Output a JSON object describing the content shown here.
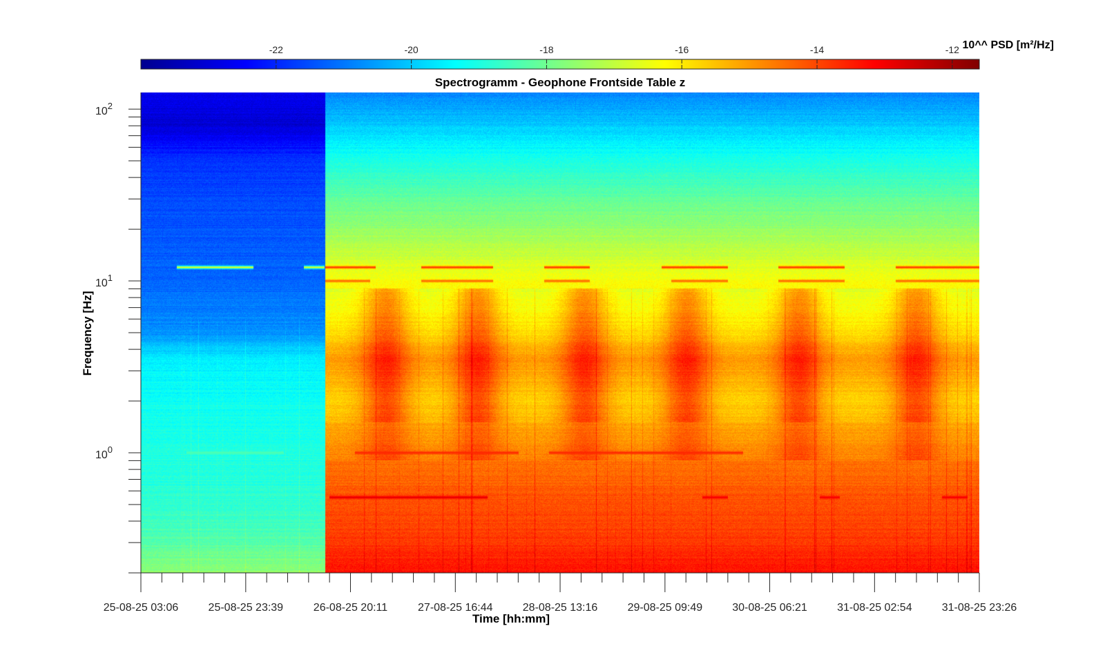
{
  "chart_data": {
    "type": "heatmap",
    "title": "Spectrogramm - Geophone Frontside Table z",
    "xlabel": "Time [hh:mm]",
    "ylabel": "Frequency [Hz]",
    "yscale": "log",
    "ylim": [
      0.2,
      125
    ],
    "y_ticks": [
      {
        "value": 1,
        "base": "10",
        "exp": "0"
      },
      {
        "value": 10,
        "base": "10",
        "exp": "1"
      },
      {
        "value": 100,
        "base": "10",
        "exp": "2"
      }
    ],
    "x_range_hours": [
      0,
      164.33
    ],
    "x_ticks": [
      {
        "hours": 0,
        "label": "25-08-25 03:06"
      },
      {
        "hours": 20.55,
        "label": "25-08-25 23:39"
      },
      {
        "hours": 41.08,
        "label": "26-08-25 20:11"
      },
      {
        "hours": 61.63,
        "label": "27-08-25 16:44"
      },
      {
        "hours": 82.17,
        "label": "28-08-25 13:16"
      },
      {
        "hours": 102.72,
        "label": "29-08-25 09:49"
      },
      {
        "hours": 123.25,
        "label": "30-08-25 06:21"
      },
      {
        "hours": 143.8,
        "label": "31-08-25 02:54"
      },
      {
        "hours": 164.33,
        "label": "31-08-25 23:26"
      }
    ],
    "colorbar": {
      "label": "10^^ PSD [m²/Hz]",
      "colormap": "jet",
      "range": [
        -24,
        -11.6
      ],
      "ticks": [
        {
          "value": -22,
          "label": "-22"
        },
        {
          "value": -20,
          "label": "-20"
        },
        {
          "value": -18,
          "label": "-18"
        },
        {
          "value": -16,
          "label": "-16"
        },
        {
          "value": -14,
          "label": "-14"
        },
        {
          "value": -12,
          "label": "-12"
        }
      ]
    },
    "regimes": [
      {
        "name": "quiet",
        "start_hours": 0,
        "end_hours": 36.2
      },
      {
        "name": "active",
        "start_hours": 36.2,
        "end_hours": 164.33
      }
    ],
    "log10_psd_profile_quiet": [
      {
        "f": 0.2,
        "v": -17.6
      },
      {
        "f": 0.3,
        "v": -18.3
      },
      {
        "f": 0.5,
        "v": -18.8
      },
      {
        "f": 1.0,
        "v": -19.0
      },
      {
        "f": 2.0,
        "v": -19.2
      },
      {
        "f": 3.5,
        "v": -19.5
      },
      {
        "f": 5.0,
        "v": -20.7
      },
      {
        "f": 10.0,
        "v": -21.2
      },
      {
        "f": 20.0,
        "v": -21.4
      },
      {
        "f": 50.0,
        "v": -21.8
      },
      {
        "f": 80.0,
        "v": -23.0
      },
      {
        "f": 125.0,
        "v": -22.6
      }
    ],
    "log10_psd_profile_active": [
      {
        "f": 0.2,
        "v": -13.3
      },
      {
        "f": 0.3,
        "v": -13.8
      },
      {
        "f": 0.5,
        "v": -14.1
      },
      {
        "f": 1.0,
        "v": -14.6
      },
      {
        "f": 2.0,
        "v": -15.2
      },
      {
        "f": 3.5,
        "v": -14.5
      },
      {
        "f": 5.0,
        "v": -15.4
      },
      {
        "f": 10.0,
        "v": -16.3
      },
      {
        "f": 20.0,
        "v": -17.5
      },
      {
        "f": 50.0,
        "v": -19.0
      },
      {
        "f": 80.0,
        "v": -20.0
      },
      {
        "f": 125.0,
        "v": -20.8
      }
    ],
    "daily_activity_centers_hours": [
      48,
      66,
      87,
      107,
      129,
      152
    ],
    "spectral_lines": [
      {
        "f": 12.0,
        "start_hours": 7,
        "end_hours": 22,
        "v": -16.6
      },
      {
        "f": 12.0,
        "start_hours": 32,
        "end_hours": 36,
        "v": -16.6
      },
      {
        "f": 12.0,
        "start_hours": 36.2,
        "end_hours": 46,
        "v": -13.8
      },
      {
        "f": 12.0,
        "start_hours": 55,
        "end_hours": 69,
        "v": -13.8
      },
      {
        "f": 12.0,
        "start_hours": 79,
        "end_hours": 88,
        "v": -13.8
      },
      {
        "f": 12.0,
        "start_hours": 102,
        "end_hours": 115,
        "v": -13.8
      },
      {
        "f": 12.0,
        "start_hours": 125,
        "end_hours": 138,
        "v": -13.8
      },
      {
        "f": 12.0,
        "start_hours": 148,
        "end_hours": 164.3,
        "v": -13.8
      },
      {
        "f": 10.0,
        "start_hours": 36.2,
        "end_hours": 45,
        "v": -14.4
      },
      {
        "f": 10.0,
        "start_hours": 55,
        "end_hours": 69,
        "v": -14.4
      },
      {
        "f": 10.0,
        "start_hours": 79,
        "end_hours": 88,
        "v": -14.4
      },
      {
        "f": 10.0,
        "start_hours": 104,
        "end_hours": 115,
        "v": -14.4
      },
      {
        "f": 10.0,
        "start_hours": 125,
        "end_hours": 138,
        "v": -14.4
      },
      {
        "f": 10.0,
        "start_hours": 148,
        "end_hours": 164.3,
        "v": -14.4
      },
      {
        "f": 1.0,
        "start_hours": 9,
        "end_hours": 28,
        "v": -18.4
      },
      {
        "f": 1.0,
        "start_hours": 42,
        "end_hours": 74,
        "v": -13.6
      },
      {
        "f": 1.0,
        "start_hours": 80,
        "end_hours": 118,
        "v": -13.6
      },
      {
        "f": 0.55,
        "start_hours": 37,
        "end_hours": 68,
        "v": -12.8
      },
      {
        "f": 0.55,
        "start_hours": 110,
        "end_hours": 115,
        "v": -13.0
      },
      {
        "f": 0.55,
        "start_hours": 133,
        "end_hours": 137,
        "v": -13.0
      },
      {
        "f": 0.55,
        "start_hours": 157,
        "end_hours": 162,
        "v": -13.0
      }
    ]
  }
}
